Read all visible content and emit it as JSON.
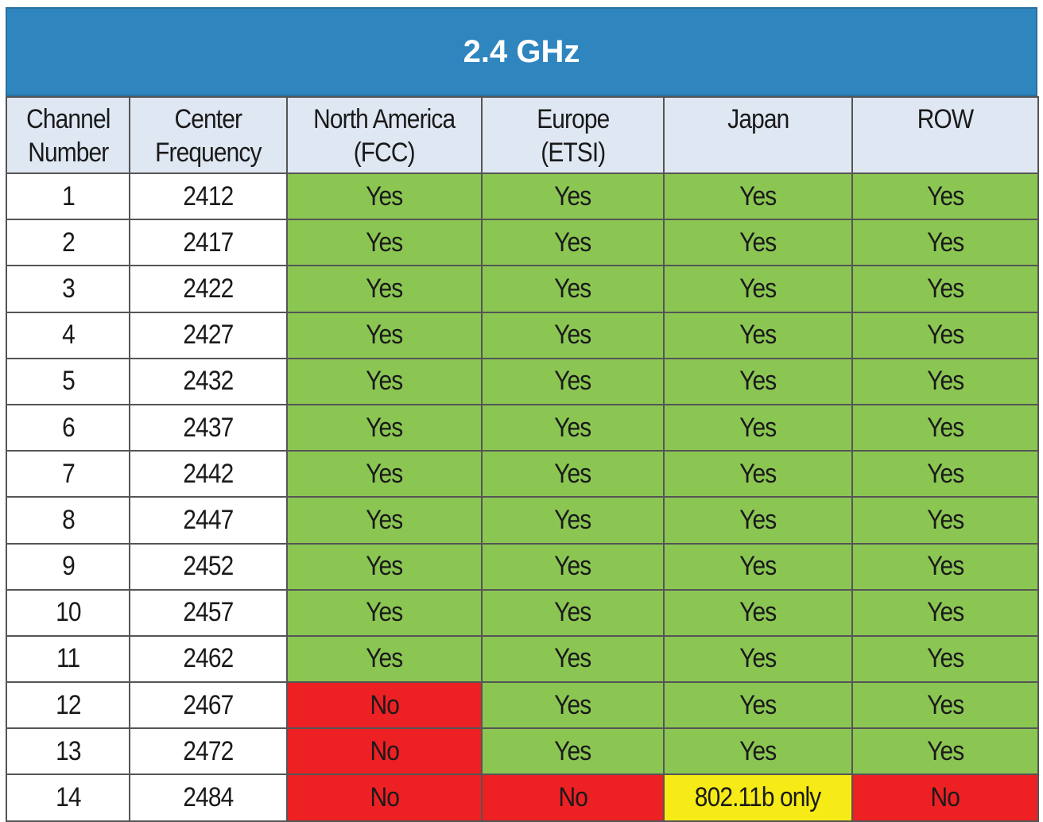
{
  "title": "2.4 GHz",
  "headers": [
    [
      "Channel",
      "Number"
    ],
    [
      "Center",
      "Frequency"
    ],
    [
      "North America",
      "(FCC)"
    ],
    [
      "Europe",
      "(ETSI)"
    ],
    [
      "Japan",
      ""
    ],
    [
      "ROW",
      ""
    ]
  ],
  "rows": [
    [
      "1",
      "2412",
      "Yes",
      "Yes",
      "Yes",
      "Yes"
    ],
    [
      "2",
      "2417",
      "Yes",
      "Yes",
      "Yes",
      "Yes"
    ],
    [
      "3",
      "2422",
      "Yes",
      "Yes",
      "Yes",
      "Yes"
    ],
    [
      "4",
      "2427",
      "Yes",
      "Yes",
      "Yes",
      "Yes"
    ],
    [
      "5",
      "2432",
      "Yes",
      "Yes",
      "Yes",
      "Yes"
    ],
    [
      "6",
      "2437",
      "Yes",
      "Yes",
      "Yes",
      "Yes"
    ],
    [
      "7",
      "2442",
      "Yes",
      "Yes",
      "Yes",
      "Yes"
    ],
    [
      "8",
      "2447",
      "Yes",
      "Yes",
      "Yes",
      "Yes"
    ],
    [
      "9",
      "2452",
      "Yes",
      "Yes",
      "Yes",
      "Yes"
    ],
    [
      "10",
      "2457",
      "Yes",
      "Yes",
      "Yes",
      "Yes"
    ],
    [
      "11",
      "2462",
      "Yes",
      "Yes",
      "Yes",
      "Yes"
    ],
    [
      "12",
      "2467",
      "No",
      "Yes",
      "Yes",
      "Yes"
    ],
    [
      "13",
      "2472",
      "No",
      "Yes",
      "Yes",
      "Yes"
    ],
    [
      "14",
      "2484",
      "No",
      "No",
      "802.11b only",
      "No"
    ]
  ],
  "colors": {
    "title_bg": "#2f86be",
    "header_bg": "#dfe7f3",
    "yes": "#8bc653",
    "no": "#ed2024",
    "b_only": "#f6eb16"
  }
}
